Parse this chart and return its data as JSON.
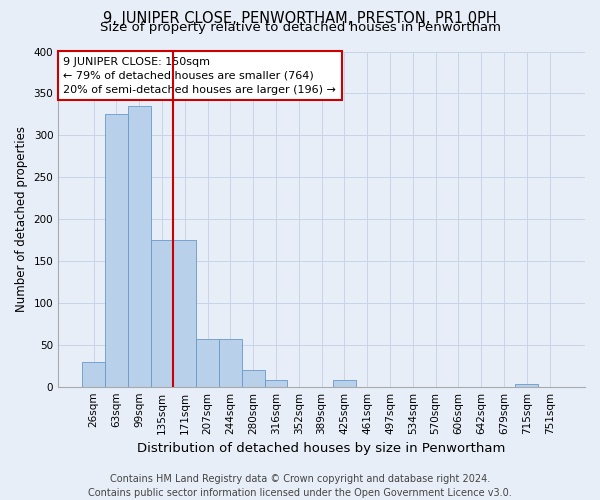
{
  "title": "9, JUNIPER CLOSE, PENWORTHAM, PRESTON, PR1 0PH",
  "subtitle": "Size of property relative to detached houses in Penwortham",
  "xlabel": "Distribution of detached houses by size in Penwortham",
  "ylabel": "Number of detached properties",
  "footer_line1": "Contains HM Land Registry data © Crown copyright and database right 2024.",
  "footer_line2": "Contains public sector information licensed under the Open Government Licence v3.0.",
  "bar_labels": [
    "26sqm",
    "63sqm",
    "99sqm",
    "135sqm",
    "171sqm",
    "207sqm",
    "244sqm",
    "280sqm",
    "316sqm",
    "352sqm",
    "389sqm",
    "425sqm",
    "461sqm",
    "497sqm",
    "534sqm",
    "570sqm",
    "606sqm",
    "642sqm",
    "679sqm",
    "715sqm",
    "751sqm"
  ],
  "bar_values": [
    30,
    325,
    335,
    175,
    175,
    57,
    57,
    20,
    8,
    0,
    0,
    8,
    0,
    0,
    0,
    0,
    0,
    0,
    0,
    3,
    0
  ],
  "bar_color": "#b8d0ea",
  "bar_edge_color": "#6699cc",
  "annotation_title": "9 JUNIPER CLOSE: 150sqm",
  "annotation_line2": "← 79% of detached houses are smaller (764)",
  "annotation_line3": "20% of semi-detached houses are larger (196) →",
  "annotation_box_facecolor": "#ffffff",
  "annotation_box_edgecolor": "#cc0000",
  "property_line_color": "#cc0000",
  "property_line_x": 3.5,
  "ylim": [
    0,
    400
  ],
  "yticks": [
    0,
    50,
    100,
    150,
    200,
    250,
    300,
    350,
    400
  ],
  "grid_color": "#c8d4e8",
  "background_color": "#e8eef8",
  "title_fontsize": 10.5,
  "subtitle_fontsize": 9.5,
  "xlabel_fontsize": 9.5,
  "ylabel_fontsize": 8.5,
  "tick_fontsize": 7.5,
  "annotation_fontsize": 8,
  "footer_fontsize": 7
}
